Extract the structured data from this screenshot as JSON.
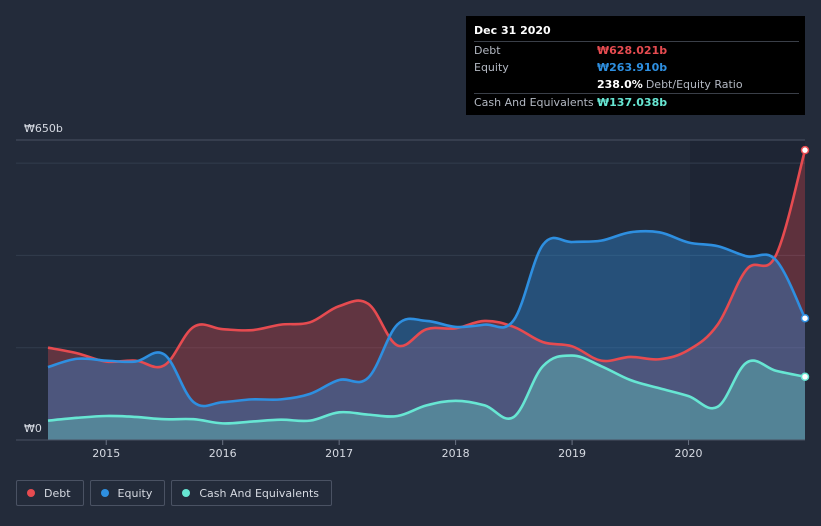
{
  "chart_data": {
    "type": "area",
    "x_start": 2014.5,
    "x_end": 2021.0,
    "ylim": [
      0,
      650
    ],
    "y_max_label": "₩650b",
    "y_min_label": "₩0",
    "x_tick_labels": [
      "2015",
      "2016",
      "2017",
      "2018",
      "2019",
      "2020"
    ],
    "x_tick_values": [
      2015,
      2016,
      2017,
      2018,
      2019,
      2020
    ],
    "series": [
      {
        "name": "Debt",
        "color": "#e64b50",
        "points": [
          [
            2014.5,
            200
          ],
          [
            2014.75,
            188
          ],
          [
            2015.0,
            170
          ],
          [
            2015.25,
            172
          ],
          [
            2015.5,
            162
          ],
          [
            2015.75,
            245
          ],
          [
            2016.0,
            240
          ],
          [
            2016.25,
            238
          ],
          [
            2016.5,
            250
          ],
          [
            2016.75,
            255
          ],
          [
            2017.0,
            290
          ],
          [
            2017.25,
            295
          ],
          [
            2017.5,
            205
          ],
          [
            2017.75,
            240
          ],
          [
            2018.0,
            242
          ],
          [
            2018.25,
            258
          ],
          [
            2018.5,
            245
          ],
          [
            2018.75,
            212
          ],
          [
            2019.0,
            203
          ],
          [
            2019.25,
            172
          ],
          [
            2019.5,
            180
          ],
          [
            2019.75,
            175
          ],
          [
            2020.0,
            195
          ],
          [
            2020.25,
            250
          ],
          [
            2020.5,
            370
          ],
          [
            2020.75,
            400
          ],
          [
            2021.0,
            628.021
          ]
        ]
      },
      {
        "name": "Equity",
        "color": "#2e8fe0",
        "points": [
          [
            2014.5,
            158
          ],
          [
            2014.75,
            176
          ],
          [
            2015.0,
            172
          ],
          [
            2015.25,
            170
          ],
          [
            2015.5,
            185
          ],
          [
            2015.75,
            82
          ],
          [
            2016.0,
            82
          ],
          [
            2016.25,
            88
          ],
          [
            2016.5,
            88
          ],
          [
            2016.75,
            100
          ],
          [
            2017.0,
            130
          ],
          [
            2017.25,
            135
          ],
          [
            2017.5,
            250
          ],
          [
            2017.75,
            258
          ],
          [
            2018.0,
            245
          ],
          [
            2018.25,
            250
          ],
          [
            2018.5,
            260
          ],
          [
            2018.75,
            423
          ],
          [
            2019.0,
            429
          ],
          [
            2019.25,
            432
          ],
          [
            2019.5,
            450
          ],
          [
            2019.75,
            450
          ],
          [
            2020.0,
            428
          ],
          [
            2020.25,
            420
          ],
          [
            2020.5,
            398
          ],
          [
            2020.75,
            390
          ],
          [
            2021.0,
            263.91
          ]
        ]
      },
      {
        "name": "Cash And Equivalents",
        "color": "#67e6d3",
        "points": [
          [
            2014.5,
            42
          ],
          [
            2014.75,
            48
          ],
          [
            2015.0,
            52
          ],
          [
            2015.25,
            50
          ],
          [
            2015.5,
            45
          ],
          [
            2015.75,
            45
          ],
          [
            2016.0,
            36
          ],
          [
            2016.25,
            40
          ],
          [
            2016.5,
            44
          ],
          [
            2016.75,
            42
          ],
          [
            2017.0,
            60
          ],
          [
            2017.25,
            55
          ],
          [
            2017.5,
            52
          ],
          [
            2017.75,
            75
          ],
          [
            2018.0,
            85
          ],
          [
            2018.25,
            75
          ],
          [
            2018.5,
            50
          ],
          [
            2018.75,
            160
          ],
          [
            2019.0,
            183
          ],
          [
            2019.25,
            160
          ],
          [
            2019.5,
            130
          ],
          [
            2019.75,
            112
          ],
          [
            2020.0,
            95
          ],
          [
            2020.25,
            72
          ],
          [
            2020.5,
            168
          ],
          [
            2020.75,
            150
          ],
          [
            2021.0,
            137.038
          ]
        ]
      }
    ]
  },
  "tooltip": {
    "date": "Dec 31 2020",
    "debt_label": "Debt",
    "debt_value": "₩628.021b",
    "equity_label": "Equity",
    "equity_value": "₩263.910b",
    "ratio_value": "238.0%",
    "ratio_label": "Debt/Equity Ratio",
    "cash_label": "Cash And Equivalents",
    "cash_value": "₩137.038b"
  },
  "legend": {
    "debt": "Debt",
    "equity": "Equity",
    "cash": "Cash And Equivalents"
  },
  "colors": {
    "debt": "#e64b50",
    "equity": "#2e8fe0",
    "cash": "#67e6d3",
    "background": "#232b3a"
  }
}
